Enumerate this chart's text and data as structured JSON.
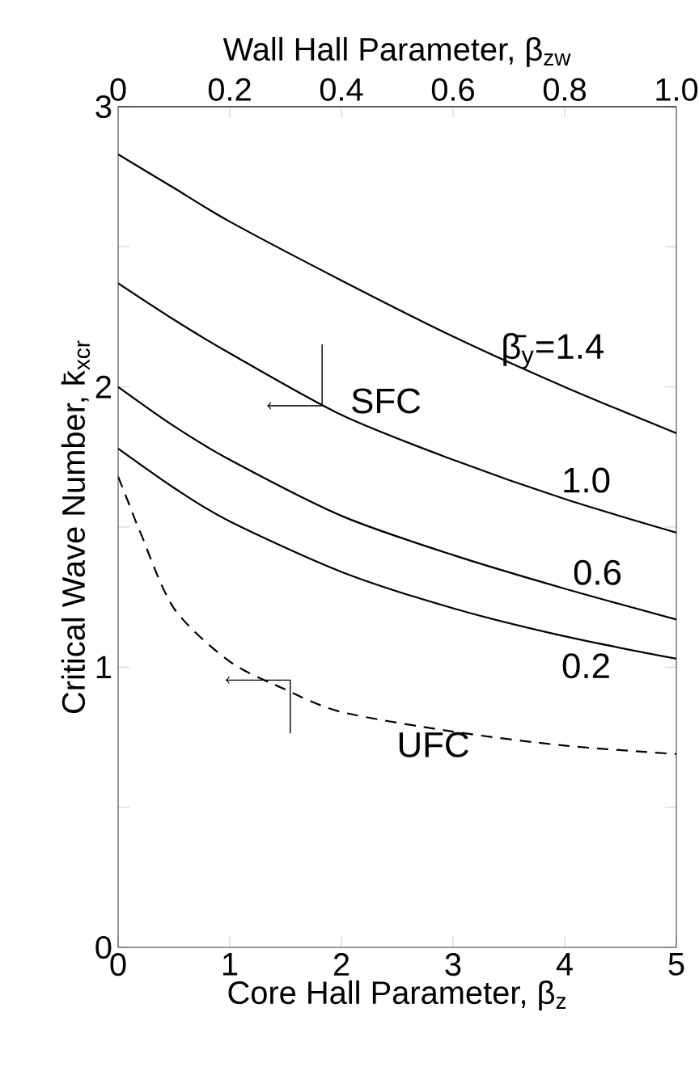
{
  "chart_data": {
    "type": "line",
    "xlabel": "Core Hall Parameter, β$_{z}$",
    "ylabel": "Critical Wave Number, k̄$_{xcr}$",
    "x2label": "Wall Hall Parameter, β$_{zw}$",
    "x": [
      0,
      0.5,
      1,
      2,
      3,
      4,
      5
    ],
    "series": [
      {
        "name": "β̄$_{y}$=1.4",
        "color": "#000000",
        "line_style": "solid",
        "values": [
          2.83,
          2.71,
          2.59,
          2.38,
          2.18,
          2.0,
          1.835
        ]
      },
      {
        "name": "1.0",
        "color": "#000000",
        "line_style": "solid",
        "values": [
          2.37,
          2.24,
          2.12,
          1.9,
          1.74,
          1.6,
          1.48
        ]
      },
      {
        "name": "0.6",
        "color": "#000000",
        "line_style": "solid",
        "values": [
          2.0,
          1.86,
          1.74,
          1.54,
          1.4,
          1.28,
          1.17
        ]
      },
      {
        "name": "0.2",
        "color": "#000000",
        "line_style": "solid",
        "values": [
          1.78,
          1.64,
          1.52,
          1.34,
          1.21,
          1.11,
          1.03
        ]
      },
      {
        "name": "UFC",
        "color": "#000000",
        "line_style": "dashed",
        "x": [
          0,
          0.1,
          0.2,
          0.5,
          1,
          1.5,
          2,
          3,
          4,
          5
        ],
        "values": [
          1.68,
          1.58,
          1.48,
          1.21,
          1.02,
          0.92,
          0.84,
          0.77,
          0.72,
          0.69
        ]
      }
    ],
    "annotations": [
      "SFC"
    ],
    "xlim": [
      0,
      5
    ],
    "xticks": [
      0,
      1,
      2,
      3,
      4,
      5
    ],
    "ylim": [
      0,
      3
    ],
    "yticks": [
      0,
      {
        "value": 0.5,
        "label": null
      },
      1,
      {
        "value": 1.5,
        "label": null
      },
      2,
      {
        "value": 2.5,
        "label": null
      },
      3
    ],
    "x2lim": [
      0,
      1
    ],
    "x2ticks": [
      0,
      0.2,
      0.4,
      0.6,
      0.8,
      {
        "value": 1,
        "label": "1.0"
      }
    ]
  }
}
